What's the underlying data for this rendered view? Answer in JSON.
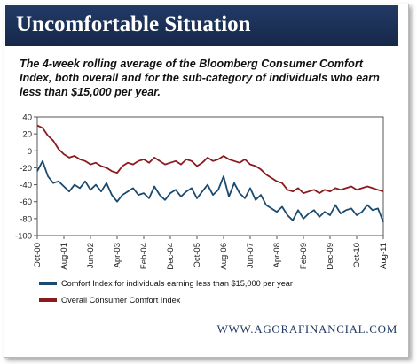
{
  "header": {
    "title": "Uncomfortable Situation"
  },
  "subtitle": "The 4-week rolling average of the Bloomberg Consumer Comfort Index, both overall and for the sub-category of individuals who earn less than $15,000 per year.",
  "footer": {
    "url": "WWW.AGORAFINANCIAL.COM"
  },
  "colors": {
    "header_bg": "#1b2f55",
    "low_income": "#1b4a6e",
    "overall": "#8b1a1d"
  },
  "chart_data": {
    "type": "line",
    "title": "",
    "xlabel": "",
    "ylabel": "",
    "ylim": [
      -100,
      40
    ],
    "yticks": [
      40,
      20,
      0,
      -20,
      -40,
      -60,
      -80,
      -100
    ],
    "xlim": [
      "2000-10",
      "2011-08"
    ],
    "xticks": [
      "Oct-00",
      "Aug-01",
      "Jun-02",
      "Apr-03",
      "Feb-04",
      "Dec-04",
      "Oct-05",
      "Aug-06",
      "Jun-07",
      "Apr-08",
      "Feb-09",
      "Dec-09",
      "Oct-10",
      "Aug-11"
    ],
    "grid": false,
    "legend_position": "bottom",
    "series": [
      {
        "name": "Comfort Index for individuals earning less than $15,000 per year",
        "color": "#1b4a6e",
        "x": [
          "2000-10",
          "2000-12",
          "2001-02",
          "2001-04",
          "2001-06",
          "2001-08",
          "2001-10",
          "2001-12",
          "2002-02",
          "2002-04",
          "2002-06",
          "2002-08",
          "2002-10",
          "2002-12",
          "2003-02",
          "2003-04",
          "2003-06",
          "2003-08",
          "2003-10",
          "2003-12",
          "2004-02",
          "2004-04",
          "2004-06",
          "2004-08",
          "2004-10",
          "2004-12",
          "2005-02",
          "2005-04",
          "2005-06",
          "2005-08",
          "2005-10",
          "2005-12",
          "2006-02",
          "2006-04",
          "2006-06",
          "2006-08",
          "2006-10",
          "2006-12",
          "2007-02",
          "2007-04",
          "2007-06",
          "2007-08",
          "2007-10",
          "2007-12",
          "2008-02",
          "2008-04",
          "2008-06",
          "2008-08",
          "2008-10",
          "2008-12",
          "2009-02",
          "2009-04",
          "2009-06",
          "2009-08",
          "2009-10",
          "2009-12",
          "2010-02",
          "2010-04",
          "2010-06",
          "2010-08",
          "2010-10",
          "2010-12",
          "2011-02",
          "2011-04",
          "2011-06",
          "2011-08"
        ],
        "values": [
          -24,
          -12,
          -30,
          -38,
          -36,
          -42,
          -48,
          -40,
          -44,
          -36,
          -46,
          -40,
          -48,
          -38,
          -52,
          -60,
          -52,
          -48,
          -44,
          -52,
          -50,
          -56,
          -42,
          -52,
          -58,
          -50,
          -46,
          -54,
          -48,
          -44,
          -56,
          -48,
          -40,
          -52,
          -46,
          -30,
          -54,
          -38,
          -50,
          -56,
          -44,
          -58,
          -52,
          -64,
          -68,
          -72,
          -66,
          -76,
          -82,
          -70,
          -80,
          -74,
          -70,
          -78,
          -72,
          -76,
          -64,
          -74,
          -70,
          -68,
          -76,
          -72,
          -64,
          -70,
          -68,
          -84
        ]
      },
      {
        "name": "Overall Consumer Comfort Index",
        "color": "#8b1a1d",
        "x": [
          "2000-10",
          "2000-12",
          "2001-02",
          "2001-04",
          "2001-06",
          "2001-08",
          "2001-10",
          "2001-12",
          "2002-02",
          "2002-04",
          "2002-06",
          "2002-08",
          "2002-10",
          "2002-12",
          "2003-02",
          "2003-04",
          "2003-06",
          "2003-08",
          "2003-10",
          "2003-12",
          "2004-02",
          "2004-04",
          "2004-06",
          "2004-08",
          "2004-10",
          "2004-12",
          "2005-02",
          "2005-04",
          "2005-06",
          "2005-08",
          "2005-10",
          "2005-12",
          "2006-02",
          "2006-04",
          "2006-06",
          "2006-08",
          "2006-10",
          "2006-12",
          "2007-02",
          "2007-04",
          "2007-06",
          "2007-08",
          "2007-10",
          "2007-12",
          "2008-02",
          "2008-04",
          "2008-06",
          "2008-08",
          "2008-10",
          "2008-12",
          "2009-02",
          "2009-04",
          "2009-06",
          "2009-08",
          "2009-10",
          "2009-12",
          "2010-02",
          "2010-04",
          "2010-06",
          "2010-08",
          "2010-10",
          "2010-12",
          "2011-02",
          "2011-04",
          "2011-06",
          "2011-08"
        ],
        "values": [
          30,
          27,
          18,
          12,
          2,
          -4,
          -8,
          -6,
          -10,
          -12,
          -16,
          -14,
          -18,
          -20,
          -24,
          -26,
          -18,
          -14,
          -16,
          -12,
          -10,
          -14,
          -8,
          -12,
          -16,
          -14,
          -12,
          -16,
          -10,
          -12,
          -18,
          -14,
          -8,
          -12,
          -10,
          -6,
          -10,
          -12,
          -14,
          -10,
          -16,
          -18,
          -22,
          -28,
          -32,
          -36,
          -38,
          -46,
          -48,
          -44,
          -50,
          -48,
          -46,
          -50,
          -46,
          -48,
          -44,
          -46,
          -44,
          -42,
          -46,
          -44,
          -42,
          -44,
          -46,
          -48
        ]
      }
    ]
  }
}
